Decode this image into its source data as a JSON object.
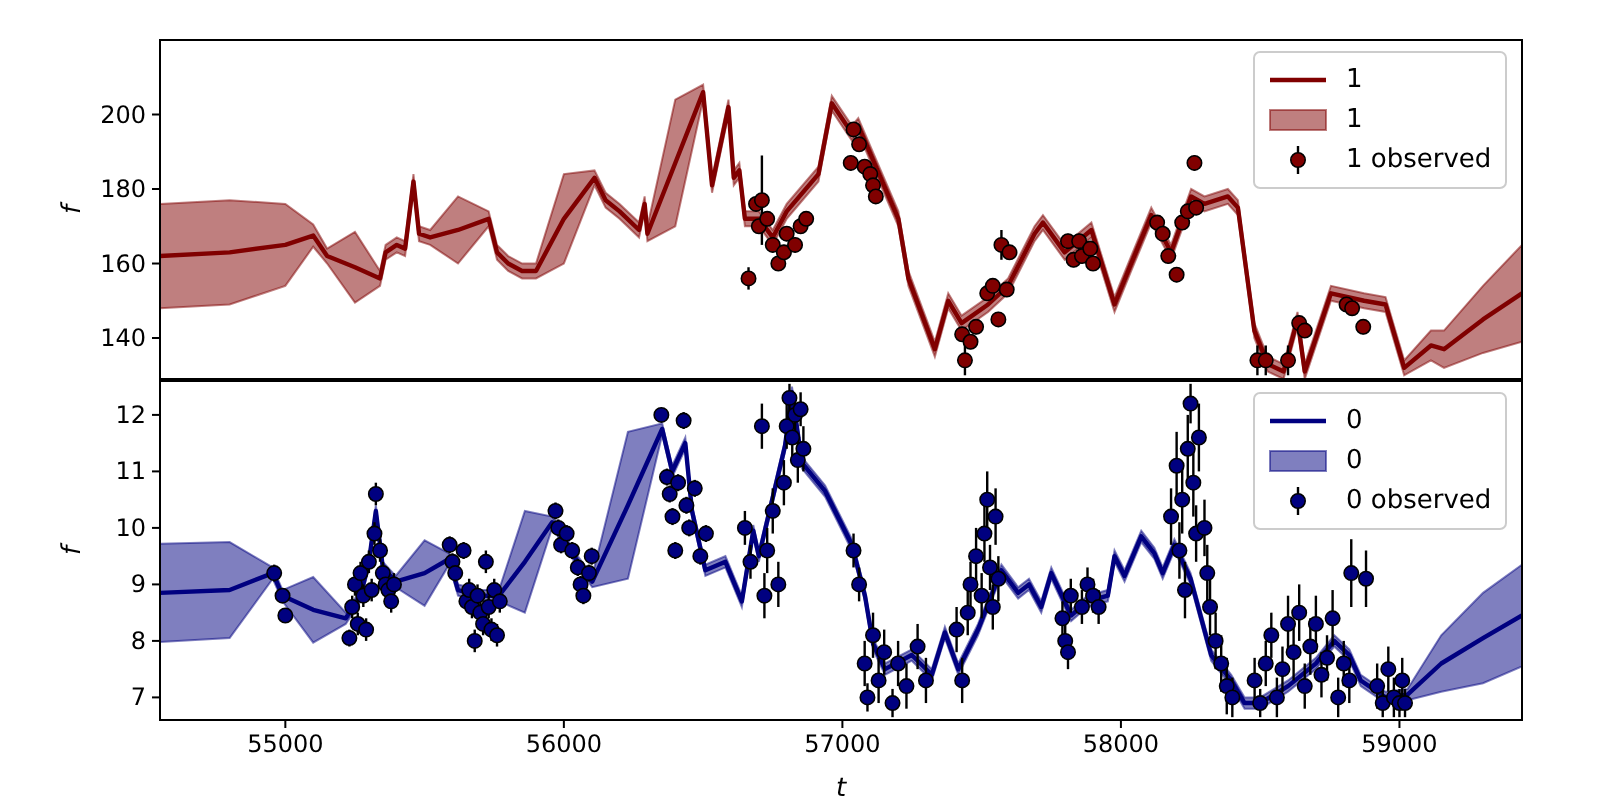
{
  "chart_data": [
    {
      "type": "line",
      "ylabel": "f",
      "xlim": [
        54550,
        59440
      ],
      "xticks": [
        55000,
        56000,
        57000,
        58000,
        59000
      ],
      "ylim": [
        129,
        220
      ],
      "yticks": [
        140,
        160,
        180,
        200
      ],
      "tick_labels": "y",
      "legend": "top right",
      "series": [
        {
          "name": "1",
          "type": "line",
          "color": "#800000",
          "x": [
            54550,
            54800,
            55000,
            55100,
            55150,
            55250,
            55340,
            55360,
            55400,
            55430,
            55460,
            55480,
            55520,
            55620,
            55730,
            55760,
            55800,
            55850,
            55900,
            56000,
            56110,
            56150,
            56200,
            56270,
            56290,
            56300,
            56400,
            56500,
            56532,
            56591,
            56610,
            56630,
            56650,
            56700,
            56750,
            56800,
            56914,
            56962,
            57034,
            57057,
            57201,
            57237,
            57332,
            57380,
            57428,
            57523,
            57595,
            57690,
            57720,
            57798,
            57894,
            57977,
            58037,
            58109,
            58180,
            58252,
            58300,
            58384,
            58420,
            58479,
            58527,
            58584,
            58634,
            58660,
            58754,
            58873,
            58950,
            59017,
            59113,
            59160,
            59300,
            59440
          ],
          "values": [
            162,
            163,
            165,
            167.5,
            162,
            159,
            156,
            163,
            165,
            164,
            182,
            168,
            167,
            169,
            172,
            163,
            160,
            158,
            158,
            172,
            183,
            177,
            174,
            169,
            176,
            168,
            187,
            206,
            181,
            202,
            183,
            185,
            172,
            172,
            167,
            174,
            184,
            203,
            195,
            197,
            172,
            156,
            137,
            150,
            144,
            149,
            154,
            168,
            171,
            163,
            169,
            149,
            160,
            173,
            163,
            178,
            176,
            178,
            175,
            142,
            133,
            131,
            145,
            131,
            152,
            150,
            149,
            132,
            138,
            137,
            145,
            152
          ],
          "lower": [
            148,
            149,
            154,
            164.5,
            160,
            149.5,
            154,
            161,
            163,
            162,
            180,
            166,
            165,
            160,
            170,
            161,
            158,
            156,
            156,
            160,
            181,
            175,
            172,
            167,
            174,
            166,
            170,
            204,
            179,
            200,
            181,
            183,
            170,
            170,
            165,
            172,
            182,
            201,
            193,
            195,
            170,
            154,
            135,
            148,
            142,
            147,
            152,
            166,
            169,
            161,
            167,
            147,
            158,
            171,
            161,
            176,
            174,
            176,
            173,
            140,
            131,
            129,
            143,
            129,
            150,
            148,
            147,
            130,
            134,
            132,
            136,
            139
          ],
          "upper": [
            176,
            177,
            176,
            170.5,
            164,
            168.5,
            158,
            165,
            167,
            166,
            184,
            170,
            169,
            178,
            174,
            165,
            162,
            160,
            160,
            184,
            185,
            179,
            176,
            171,
            178,
            170,
            204,
            208,
            183,
            204,
            185,
            187,
            174,
            174,
            169,
            176,
            186,
            205,
            197,
            199,
            174,
            158,
            139,
            152,
            146,
            151,
            156,
            170,
            173,
            165,
            171,
            151,
            162,
            175,
            165,
            180,
            178,
            180,
            177,
            144,
            135,
            133,
            147,
            133,
            154,
            152,
            151,
            134,
            142,
            142,
            154,
            165
          ]
        },
        {
          "name": "1 observed",
          "type": "scatter",
          "marker": "circle",
          "color": "#800000",
          "x": [
            56663,
            56690,
            56700,
            56711,
            56730,
            56750,
            56770,
            56790,
            56800,
            56830,
            56850,
            56870,
            57030,
            57040,
            57060,
            57080,
            57100,
            57110,
            57120,
            57430,
            57440,
            57460,
            57480,
            57520,
            57540,
            57560,
            57571,
            57590,
            57600,
            57810,
            57830,
            57850,
            57860,
            57890,
            57900,
            58130,
            58150,
            58170,
            58200,
            58220,
            58240,
            58264,
            58270,
            58490,
            58520,
            58600,
            58640,
            58660,
            58810,
            58830,
            58870
          ],
          "values": [
            156,
            176,
            170,
            177,
            172,
            165,
            160,
            163,
            168,
            165,
            170,
            172,
            187,
            196,
            192,
            186,
            184,
            181,
            178,
            141,
            134,
            139,
            143,
            152,
            154,
            145,
            165,
            153,
            163,
            166,
            161,
            166,
            162,
            164,
            160,
            171,
            168,
            162,
            157,
            171,
            174,
            187,
            175,
            134,
            134,
            134,
            144,
            142,
            149,
            148,
            143
          ],
          "errors": [
            3,
            2,
            2,
            12,
            2,
            2,
            2,
            2,
            2,
            2,
            2,
            2,
            2,
            2,
            2,
            2,
            2,
            2,
            2,
            2,
            4,
            2,
            2,
            2,
            2,
            2,
            4,
            2,
            2,
            2,
            2,
            2,
            2,
            2,
            2,
            2,
            2,
            2,
            2,
            2,
            2,
            2,
            2,
            4,
            4,
            4,
            2,
            2,
            2,
            2,
            2
          ]
        }
      ]
    },
    {
      "type": "line",
      "xlabel": "t",
      "ylabel": "f",
      "xlim": [
        54550,
        59440
      ],
      "xticks": [
        55000,
        56000,
        57000,
        58000,
        59000
      ],
      "ylim": [
        6.6,
        12.6
      ],
      "yticks": [
        7,
        8,
        9,
        10,
        11,
        12
      ],
      "legend": "top right",
      "series": [
        {
          "name": "0",
          "type": "line",
          "color": "#000080",
          "x": [
            54550,
            54800,
            54955,
            54990,
            55100,
            55217,
            55270,
            55300,
            55325,
            55350,
            55396,
            55500,
            55588,
            55620,
            55700,
            55767,
            55860,
            55958,
            56000,
            56050,
            56102,
            56230,
            56353,
            56389,
            56436,
            56460,
            56508,
            56580,
            56639,
            56680,
            56700,
            56794,
            56819,
            56855,
            56938,
            57034,
            57081,
            57110,
            57153,
            57249,
            57321,
            57368,
            57416,
            57487,
            57571,
            57631,
            57670,
            57714,
            57750,
            57821,
            57880,
            57953,
            57977,
            58013,
            58073,
            58120,
            58150,
            58192,
            58250,
            58324,
            58396,
            58444,
            58500,
            58600,
            58700,
            58766,
            58820,
            58861,
            58950,
            59029,
            59150,
            59300,
            59440
          ],
          "values": [
            8.85,
            8.9,
            9.2,
            8.8,
            8.55,
            8.4,
            8.8,
            9.4,
            10.3,
            9.3,
            9.05,
            9.2,
            9.45,
            8.9,
            8.8,
            8.8,
            9.4,
            10.1,
            9.8,
            9.4,
            9.05,
            10.4,
            11.75,
            11.0,
            11.5,
            10.3,
            9.25,
            9.4,
            8.7,
            9.95,
            9.5,
            11.45,
            12.4,
            11.15,
            10.65,
            9.7,
            8.8,
            7.95,
            7.5,
            7.75,
            7.4,
            8.15,
            7.5,
            8.2,
            9.25,
            8.85,
            9.0,
            8.6,
            9.2,
            8.45,
            8.7,
            8.8,
            9.5,
            9.15,
            9.85,
            9.55,
            9.2,
            9.7,
            9.1,
            7.75,
            7.3,
            6.9,
            6.9,
            7.2,
            7.6,
            8.0,
            7.75,
            7.3,
            7.0,
            7.05,
            7.6,
            8.05,
            8.45
          ],
          "lower": [
            7.98,
            8.05,
            9.1,
            8.7,
            7.97,
            8.3,
            8.7,
            9.3,
            10.2,
            9.2,
            8.95,
            8.62,
            9.35,
            8.8,
            8.7,
            8.7,
            8.5,
            10.0,
            9.7,
            9.3,
            8.95,
            9.1,
            11.65,
            10.9,
            11.4,
            10.2,
            9.15,
            9.3,
            8.6,
            9.85,
            9.4,
            11.35,
            12.3,
            11.05,
            10.55,
            9.6,
            8.7,
            7.85,
            7.4,
            7.65,
            7.3,
            8.05,
            7.4,
            8.1,
            9.15,
            8.75,
            8.9,
            8.5,
            9.1,
            8.35,
            8.6,
            8.7,
            9.4,
            9.05,
            9.75,
            9.45,
            9.1,
            9.6,
            9.0,
            7.65,
            7.2,
            6.8,
            6.8,
            7.1,
            7.5,
            7.9,
            7.65,
            7.2,
            6.9,
            6.95,
            7.1,
            7.25,
            7.55
          ],
          "upper": [
            9.72,
            9.75,
            9.3,
            8.9,
            9.13,
            8.5,
            8.9,
            9.5,
            10.4,
            9.4,
            9.15,
            9.78,
            9.55,
            9.0,
            8.9,
            8.9,
            10.3,
            10.2,
            9.9,
            9.5,
            9.15,
            11.7,
            11.85,
            11.1,
            11.6,
            10.4,
            9.35,
            9.5,
            8.8,
            10.05,
            9.6,
            11.55,
            12.5,
            11.25,
            10.75,
            9.8,
            8.9,
            8.05,
            7.6,
            7.85,
            7.5,
            8.25,
            7.6,
            8.3,
            9.35,
            8.95,
            9.1,
            8.7,
            9.3,
            8.55,
            8.8,
            8.9,
            9.6,
            9.25,
            9.95,
            9.65,
            9.3,
            9.8,
            9.2,
            7.85,
            7.4,
            7.0,
            7.0,
            7.3,
            7.7,
            8.1,
            7.85,
            7.4,
            7.1,
            7.15,
            8.1,
            8.85,
            9.35
          ]
        },
        {
          "name": "0 observed",
          "type": "scatter",
          "marker": "circle",
          "color": "#000080",
          "x": [
            54960,
            54990,
            55000,
            55230,
            55240,
            55250,
            55260,
            55270,
            55280,
            55290,
            55300,
            55310,
            55320,
            55325,
            55340,
            55350,
            55360,
            55370,
            55380,
            55390,
            55590,
            55600,
            55610,
            55640,
            55650,
            55660,
            55670,
            55680,
            55690,
            55700,
            55710,
            55720,
            55730,
            55740,
            55750,
            55760,
            55770,
            55970,
            55980,
            55990,
            56010,
            56030,
            56050,
            56060,
            56070,
            56090,
            56100,
            56350,
            56370,
            56380,
            56390,
            56400,
            56410,
            56430,
            56440,
            56450,
            56470,
            56490,
            56510,
            56650,
            56670,
            56711,
            56720,
            56730,
            56750,
            56770,
            56790,
            56800,
            56810,
            56820,
            56830,
            56840,
            56850,
            56860,
            57040,
            57060,
            57080,
            57090,
            57110,
            57130,
            57150,
            57180,
            57200,
            57230,
            57270,
            57300,
            57410,
            57430,
            57450,
            57460,
            57480,
            57500,
            57510,
            57520,
            57530,
            57540,
            57550,
            57560,
            57790,
            57800,
            57810,
            57820,
            57860,
            57880,
            57900,
            57920,
            58180,
            58200,
            58210,
            58220,
            58230,
            58240,
            58250,
            58260,
            58270,
            58280,
            58300,
            58310,
            58320,
            58340,
            58360,
            58380,
            58400,
            58480,
            58500,
            58520,
            58540,
            58560,
            58580,
            58600,
            58620,
            58640,
            58660,
            58680,
            58700,
            58720,
            58740,
            58760,
            58780,
            58800,
            58820,
            58827,
            58880,
            58920,
            58940,
            58960,
            58980,
            59000,
            59010,
            59020
          ],
          "values": [
            9.2,
            8.8,
            8.45,
            8.05,
            8.6,
            9.0,
            8.3,
            9.2,
            8.8,
            8.2,
            9.4,
            8.9,
            9.9,
            10.6,
            9.6,
            9.2,
            9.0,
            8.9,
            8.7,
            9.0,
            9.7,
            9.4,
            9.2,
            9.6,
            8.7,
            8.9,
            8.6,
            8.0,
            8.8,
            8.5,
            8.3,
            9.4,
            8.6,
            8.2,
            8.9,
            8.1,
            8.7,
            10.3,
            10.0,
            9.7,
            9.9,
            9.6,
            9.3,
            9.0,
            8.8,
            9.2,
            9.5,
            12.0,
            10.9,
            10.6,
            10.2,
            9.6,
            10.8,
            11.9,
            10.4,
            10.0,
            10.7,
            9.5,
            9.9,
            10.0,
            9.4,
            11.8,
            8.8,
            9.6,
            10.3,
            9.0,
            10.8,
            11.8,
            12.3,
            11.6,
            12.0,
            11.2,
            12.1,
            11.4,
            9.6,
            9.0,
            7.6,
            7.0,
            8.1,
            7.3,
            7.8,
            6.9,
            7.6,
            7.2,
            7.9,
            7.3,
            8.2,
            7.3,
            8.5,
            9.0,
            9.5,
            8.8,
            9.9,
            10.5,
            9.3,
            8.6,
            10.2,
            9.1,
            8.4,
            8.0,
            7.8,
            8.8,
            8.6,
            9.0,
            8.8,
            8.6,
            10.2,
            11.1,
            9.6,
            10.5,
            8.9,
            11.4,
            12.2,
            10.8,
            9.9,
            11.6,
            10.0,
            9.2,
            8.6,
            8.0,
            7.6,
            7.2,
            7.0,
            7.3,
            6.9,
            7.6,
            8.1,
            7.0,
            7.5,
            8.3,
            7.8,
            8.5,
            7.2,
            7.9,
            8.3,
            7.4,
            7.7,
            8.4,
            7.0,
            7.6,
            7.3,
            9.2,
            9.1,
            7.2,
            6.9,
            7.5,
            7.0,
            6.9,
            7.3,
            6.9
          ],
          "errors": [
            0.15,
            0.1,
            0.1,
            0.15,
            0.2,
            0.2,
            0.2,
            0.2,
            0.2,
            0.2,
            0.2,
            0.2,
            0.2,
            0.2,
            0.2,
            0.2,
            0.2,
            0.2,
            0.2,
            0.2,
            0.15,
            0.15,
            0.15,
            0.15,
            0.15,
            0.2,
            0.2,
            0.2,
            0.2,
            0.2,
            0.2,
            0.2,
            0.2,
            0.2,
            0.2,
            0.2,
            0.2,
            0.15,
            0.15,
            0.15,
            0.15,
            0.15,
            0.15,
            0.15,
            0.15,
            0.15,
            0.15,
            0.1,
            0.15,
            0.15,
            0.15,
            0.15,
            0.15,
            0.15,
            0.15,
            0.15,
            0.15,
            0.15,
            0.15,
            0.3,
            0.3,
            0.4,
            0.4,
            0.4,
            0.4,
            0.4,
            0.4,
            0.4,
            0.25,
            0.4,
            0.3,
            0.4,
            0.3,
            0.4,
            0.3,
            0.3,
            0.4,
            0.25,
            0.4,
            0.4,
            0.4,
            0.25,
            0.4,
            0.4,
            0.4,
            0.4,
            0.4,
            0.4,
            0.4,
            0.4,
            0.5,
            0.4,
            0.5,
            0.5,
            0.4,
            0.4,
            0.5,
            0.4,
            0.3,
            0.3,
            0.3,
            0.3,
            0.3,
            0.3,
            0.3,
            0.3,
            0.5,
            0.6,
            0.5,
            0.6,
            0.5,
            0.6,
            0.35,
            0.6,
            0.5,
            0.6,
            0.5,
            0.5,
            0.5,
            0.5,
            0.5,
            0.5,
            0.35,
            0.4,
            0.25,
            0.4,
            0.4,
            0.35,
            0.4,
            0.5,
            0.5,
            0.5,
            0.4,
            0.5,
            0.5,
            0.4,
            0.4,
            0.5,
            0.35,
            0.4,
            0.4,
            0.6,
            0.5,
            0.4,
            0.25,
            0.4,
            0.35,
            0.25,
            0.4,
            0.25
          ]
        }
      ]
    }
  ]
}
